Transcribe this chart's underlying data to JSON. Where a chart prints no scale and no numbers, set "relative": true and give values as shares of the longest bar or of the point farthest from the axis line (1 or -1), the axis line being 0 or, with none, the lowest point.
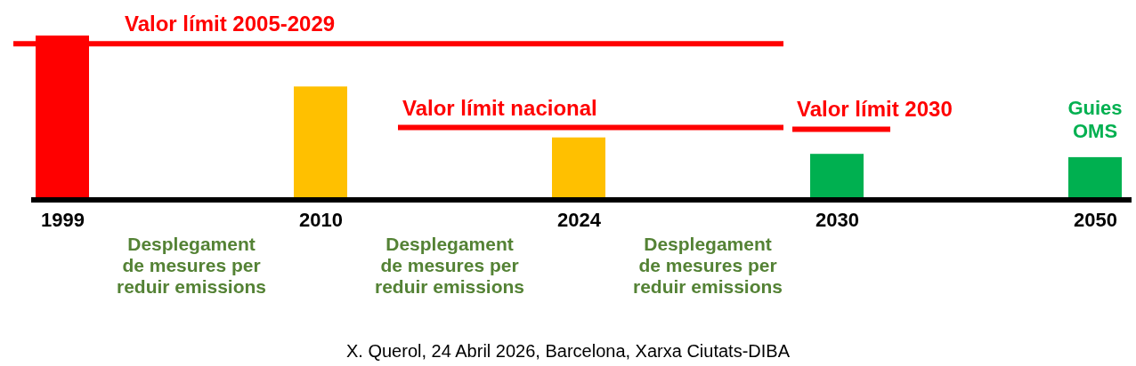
{
  "chart_data": {
    "type": "bar",
    "relative": true,
    "categories": [
      "1999",
      "2010",
      "2024",
      "2030",
      "2050"
    ],
    "values": [
      1,
      0.69,
      0.38,
      0.28,
      0.26
    ],
    "colors": [
      "#ff0000",
      "#ffc000",
      "#ffc000",
      "#00b050",
      "#00b050"
    ],
    "ref_lines": [
      {
        "axis": "y",
        "value": 0.95,
        "label": "Valor límit 2005-2029",
        "color": "#ff0000"
      },
      {
        "axis": "y",
        "value": 0.44,
        "label": "Valor límit nacional",
        "color": "#ff0000"
      },
      {
        "axis": "y",
        "value": 0.43,
        "label": "Valor límit 2030",
        "color": "#ff0000"
      }
    ],
    "annotations": [
      "Desplegament de mesures per reduir emissions",
      "Desplegament de mesures per reduir emissions",
      "Desplegament de mesures per reduir emissions",
      {
        "text": "Guies OMS",
        "x": "2050",
        "y": 0.26
      },
      "X. Querol, 24 Abril 2026, Barcelona, Xarxa Ciutats-DIBA"
    ]
  }
}
